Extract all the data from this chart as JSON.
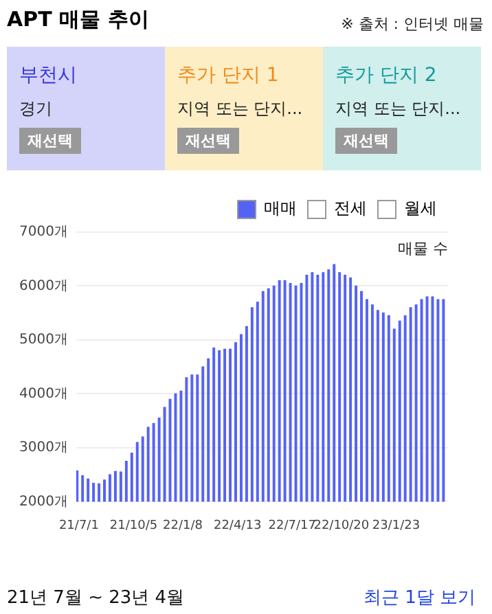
{
  "chart_data": {
    "type": "bar",
    "title": "APT 매물 추이",
    "ylabel": "매물 수",
    "annotations": [
      "※ 출처 : 인터넷 매물",
      "부천시",
      "경기",
      "재선택",
      "추가 단지 1",
      "지역 또는 단지...",
      "재선택",
      "추가 단지 2",
      "지역 또는 단지...",
      "재선택",
      "21년 7월 ~ 23년 4월",
      "최근 1달 보기"
    ],
    "categories": [
      "21/7/1",
      null,
      null,
      null,
      null,
      null,
      null,
      null,
      null,
      null,
      "21/10/5",
      null,
      null,
      null,
      null,
      null,
      null,
      null,
      null,
      "22/1/8",
      null,
      null,
      null,
      null,
      null,
      null,
      null,
      null,
      null,
      "22/4/13",
      null,
      null,
      null,
      null,
      null,
      null,
      null,
      null,
      null,
      "22/7/17",
      null,
      null,
      null,
      null,
      null,
      null,
      null,
      null,
      "22/10/20",
      null,
      null,
      null,
      null,
      null,
      null,
      null,
      null,
      null,
      "23/1/23",
      null,
      null,
      null,
      null,
      null,
      null,
      null,
      null,
      null
    ],
    "series": [
      {
        "name": "매매",
        "color": "#5563f5",
        "values": [
          2570,
          2480,
          2420,
          2340,
          2330,
          2400,
          2500,
          2560,
          2550,
          2750,
          2900,
          3100,
          3200,
          3380,
          3450,
          3550,
          3750,
          3900,
          4000,
          4050,
          4300,
          4350,
          4350,
          4500,
          4650,
          4850,
          4800,
          4830,
          4830,
          4950,
          5100,
          5250,
          5600,
          5700,
          5900,
          5950,
          6000,
          6100,
          6100,
          6050,
          6000,
          6050,
          6200,
          6250,
          6200,
          6250,
          6300,
          6400,
          6250,
          6200,
          6150,
          6000,
          5900,
          5750,
          5650,
          5550,
          5500,
          5450,
          5200,
          5350,
          5450,
          5600,
          5650,
          5750,
          5800,
          5800,
          5750,
          5750
        ]
      },
      {
        "name": "전세",
        "color": "#ffffff",
        "values": [
          null,
          null,
          null,
          null,
          null,
          null,
          null,
          null,
          null,
          null,
          null,
          null,
          null,
          null,
          null,
          null,
          null,
          null,
          null,
          null,
          null,
          null,
          null,
          null,
          null,
          null,
          null,
          null,
          null,
          null,
          null,
          null,
          null,
          null,
          null,
          null,
          null,
          null,
          null,
          null,
          null,
          null,
          null,
          null,
          null,
          null,
          null,
          null,
          null,
          null,
          null,
          null,
          null,
          null,
          null,
          null,
          null,
          null,
          null,
          null,
          null,
          null,
          null,
          null,
          null,
          null,
          null,
          null
        ]
      },
      {
        "name": "월세",
        "color": "#ffffff",
        "values": [
          null,
          null,
          null,
          null,
          null,
          null,
          null,
          null,
          null,
          null,
          null,
          null,
          null,
          null,
          null,
          null,
          null,
          null,
          null,
          null,
          null,
          null,
          null,
          null,
          null,
          null,
          null,
          null,
          null,
          null,
          null,
          null,
          null,
          null,
          null,
          null,
          null,
          null,
          null,
          null,
          null,
          null,
          null,
          null,
          null,
          null,
          null,
          null,
          null,
          null,
          null,
          null,
          null,
          null,
          null,
          null,
          null,
          null,
          null,
          null,
          null,
          null,
          null,
          null,
          null,
          null,
          null,
          null
        ]
      }
    ],
    "ylim": [
      2000,
      7000
    ],
    "yticks": [
      {
        "value": 2000,
        "label": "2000개"
      },
      {
        "value": 3000,
        "label": "3000개"
      },
      {
        "value": 4000,
        "label": "4000개"
      },
      {
        "value": 5000,
        "label": "5000개"
      },
      {
        "value": 6000,
        "label": "6000개"
      },
      {
        "value": 7000,
        "label": "7000개"
      }
    ],
    "grid": "y",
    "legend": "top right"
  }
}
